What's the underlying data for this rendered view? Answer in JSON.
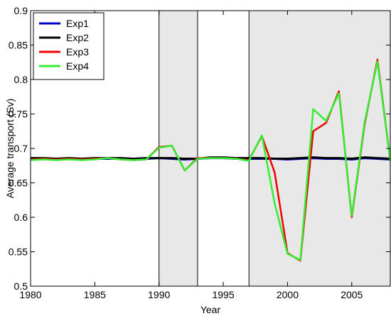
{
  "chart_data": {
    "type": "line",
    "xlabel": "Year",
    "ylabel": "Average transport (Sv)",
    "xlim": [
      1980,
      2008
    ],
    "ylim": [
      0.5,
      0.9
    ],
    "x_ticks": [
      1980,
      1985,
      1990,
      1995,
      2000,
      2005
    ],
    "y_ticks": [
      0.5,
      0.55,
      0.6,
      0.65,
      0.7,
      0.75,
      0.8,
      0.85,
      0.9
    ],
    "x_tick_labels": [
      "1980",
      "1985",
      "1990",
      "1995",
      "2000",
      "2005"
    ],
    "y_tick_labels": [
      "0.5",
      "0.55",
      "0.6",
      "0.65",
      "0.7",
      "0.75",
      "0.8",
      "0.85",
      "0.9"
    ],
    "grid": false,
    "legend_position": "top-left",
    "shaded_periods": [
      [
        1990,
        1993
      ],
      [
        1997,
        2008
      ]
    ],
    "vertical_lines": [
      1990,
      1993,
      1997
    ],
    "shade_color": "#e8e8e8",
    "x": [
      1980,
      1981,
      1982,
      1983,
      1984,
      1985,
      1986,
      1987,
      1988,
      1989,
      1990,
      1991,
      1992,
      1993,
      1994,
      1995,
      1996,
      1997,
      1998,
      1999,
      2000,
      2001,
      2002,
      2003,
      2004,
      2005,
      2006,
      2007,
      2008
    ],
    "series": [
      {
        "name": "Exp1",
        "color": "#0000cc",
        "values": [
          0.685,
          0.685,
          0.685,
          0.685,
          0.685,
          0.685,
          0.685,
          0.685,
          0.685,
          0.685,
          0.686,
          0.685,
          0.684,
          0.685,
          0.686,
          0.686,
          0.685,
          0.685,
          0.685,
          0.685,
          0.684,
          0.685,
          0.686,
          0.685,
          0.685,
          0.684,
          0.686,
          0.685,
          0.684
        ]
      },
      {
        "name": "Exp2",
        "color": "#000000",
        "values": [
          0.686,
          0.686,
          0.685,
          0.686,
          0.685,
          0.686,
          0.686,
          0.686,
          0.685,
          0.686,
          0.686,
          0.686,
          0.685,
          0.685,
          0.687,
          0.687,
          0.686,
          0.686,
          0.686,
          0.685,
          0.685,
          0.686,
          0.687,
          0.686,
          0.686,
          0.685,
          0.687,
          0.686,
          0.685
        ]
      },
      {
        "name": "Exp3",
        "color": "#ee0000",
        "values": [
          0.684,
          0.685,
          0.684,
          0.685,
          0.684,
          0.685,
          0.686,
          0.684,
          0.683,
          0.684,
          0.702,
          0.704,
          0.668,
          0.686,
          0.686,
          0.686,
          0.685,
          0.683,
          0.718,
          0.665,
          0.548,
          0.537,
          0.725,
          0.737,
          0.783,
          0.6,
          0.735,
          0.829,
          0.682
        ]
      },
      {
        "name": "Exp4",
        "color": "#33ee33",
        "values": [
          0.683,
          0.684,
          0.683,
          0.684,
          0.683,
          0.684,
          0.686,
          0.684,
          0.683,
          0.684,
          0.701,
          0.704,
          0.668,
          0.685,
          0.686,
          0.686,
          0.685,
          0.682,
          0.719,
          0.62,
          0.547,
          0.538,
          0.757,
          0.74,
          0.78,
          0.602,
          0.738,
          0.826,
          0.682
        ]
      }
    ]
  }
}
